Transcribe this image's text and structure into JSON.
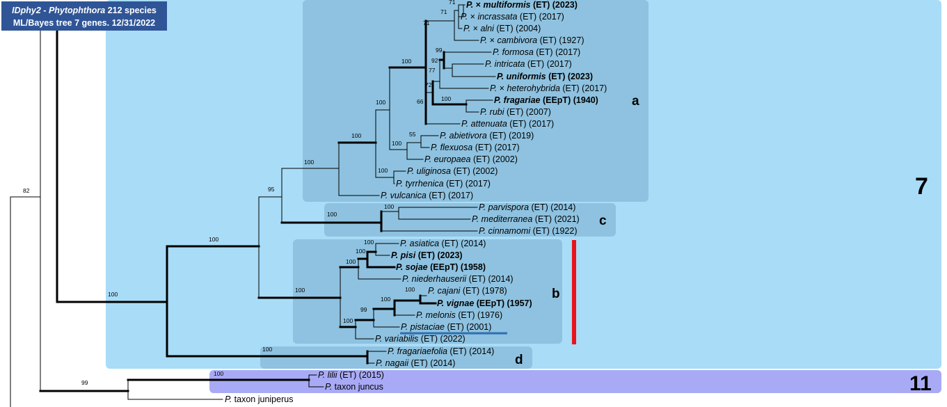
{
  "header": {
    "code": "IDphy2",
    "dash": " - ",
    "genus": "Phytophthora",
    "count": " 212 species",
    "line2": "ML/Bayes tree 7 genes. 12/31/2022"
  },
  "clades": {
    "big": "7",
    "eleven": "11",
    "a": "a",
    "b": "b",
    "c": "c",
    "d": "d"
  },
  "colors": {
    "clade7_bg": "#a9dcf7",
    "subclade_bg": "#8ec2e0",
    "clade11_bg": "#a9aaf5",
    "highlight_bar": "#e8141c",
    "underline": "#2f6fb0",
    "header_bg": "#2f5597"
  },
  "taxa": [
    {
      "id": "multiformis",
      "prefix": "P. ",
      "hybrid": true,
      "epithet": "multiformis",
      "suffix": " (ET) (2023)",
      "bold": true
    },
    {
      "id": "incrassata",
      "prefix": "P. ",
      "hybrid": true,
      "epithet": "incrassata",
      "suffix": " (ET) (2017)",
      "bold": false
    },
    {
      "id": "alni",
      "prefix": "P. ",
      "hybrid": true,
      "epithet": "alni",
      "suffix": " (ET) (2004)",
      "bold": false
    },
    {
      "id": "cambivora",
      "prefix": "P. ",
      "hybrid": true,
      "epithet": "cambivora",
      "suffix": " (ET) (1927)",
      "bold": false
    },
    {
      "id": "formosa",
      "prefix": "P. ",
      "hybrid": false,
      "epithet": "formosa",
      "suffix": " (ET) (2017)",
      "bold": false
    },
    {
      "id": "intricata",
      "prefix": "P. ",
      "hybrid": false,
      "epithet": "intricata",
      "suffix": " (ET) (2017)",
      "bold": false
    },
    {
      "id": "uniformis",
      "prefix": "P. ",
      "hybrid": false,
      "epithet": "uniformis",
      "suffix": " (ET) (2023)",
      "bold": true
    },
    {
      "id": "heterohybrida",
      "prefix": "P. ",
      "hybrid": true,
      "epithet": "heterohybrida",
      "suffix": " (ET) (2017)",
      "bold": false
    },
    {
      "id": "fragariae",
      "prefix": "P. ",
      "hybrid": false,
      "epithet": "fragariae",
      "suffix": " (EEpT) (1940)",
      "bold": true
    },
    {
      "id": "rubi",
      "prefix": "P. ",
      "hybrid": false,
      "epithet": "rubi",
      "suffix": " (ET) (2007)",
      "bold": false
    },
    {
      "id": "attenuata",
      "prefix": "P. ",
      "hybrid": false,
      "epithet": "attenuata",
      "suffix": " (ET) (2017)",
      "bold": false
    },
    {
      "id": "abietivora",
      "prefix": "P. ",
      "hybrid": false,
      "epithet": "abietivora",
      "suffix": " (ET) (2019)",
      "bold": false
    },
    {
      "id": "flexuosa",
      "prefix": "P. ",
      "hybrid": false,
      "epithet": "flexuosa",
      "suffix": " (ET) (2017)",
      "bold": false
    },
    {
      "id": "europaea",
      "prefix": "P. ",
      "hybrid": false,
      "epithet": "europaea",
      "suffix": "  (ET) (2002)",
      "bold": false
    },
    {
      "id": "uliginosa",
      "prefix": "P. ",
      "hybrid": false,
      "epithet": "uliginosa",
      "suffix": " (ET) (2002)",
      "bold": false
    },
    {
      "id": "tyrrhenica",
      "prefix": "P. ",
      "hybrid": false,
      "epithet": "tyrrhenica",
      "suffix": " (ET) (2017)",
      "bold": false
    },
    {
      "id": "vulcanica",
      "prefix": "P. ",
      "hybrid": false,
      "epithet": "vulcanica",
      "suffix": " (ET) (2017)",
      "bold": false
    },
    {
      "id": "parvispora",
      "prefix": "P. ",
      "hybrid": false,
      "epithet": "parvispora",
      "suffix": " (ET) (2014)",
      "bold": false
    },
    {
      "id": "mediterranea",
      "prefix": "P. ",
      "hybrid": false,
      "epithet": "mediterranea",
      "suffix": " (ET) (2021)",
      "bold": false
    },
    {
      "id": "cinnamomi",
      "prefix": "P. ",
      "hybrid": false,
      "epithet": "cinnamomi",
      "suffix": " (ET) (1922)",
      "bold": false
    },
    {
      "id": "asiatica",
      "prefix": "P. ",
      "hybrid": false,
      "epithet": "asiatica",
      "suffix": " (ET) (2014)",
      "bold": false
    },
    {
      "id": "pisi",
      "prefix": "P. ",
      "hybrid": false,
      "epithet": "pisi",
      "suffix": " (ET) (2023)",
      "bold": true
    },
    {
      "id": "sojae",
      "prefix": "P. ",
      "hybrid": false,
      "epithet": "sojae",
      "suffix": " (EEpT) (1958)",
      "bold": true
    },
    {
      "id": "niederhauserii",
      "prefix": "P. ",
      "hybrid": false,
      "epithet": "niederhauserii",
      "suffix": " (ET) (2014)",
      "bold": false
    },
    {
      "id": "cajani",
      "prefix": "P. ",
      "hybrid": false,
      "epithet": "cajani",
      "suffix": " (ET) (1978)",
      "bold": false
    },
    {
      "id": "vignae",
      "prefix": "P. ",
      "hybrid": false,
      "epithet": "vignae",
      "suffix": " (EEpT) (1957)",
      "bold": true
    },
    {
      "id": "melonis",
      "prefix": "P. ",
      "hybrid": false,
      "epithet": "melonis",
      "suffix": " (ET) (1976)",
      "bold": false
    },
    {
      "id": "pistaciae",
      "prefix": "P. ",
      "hybrid": false,
      "epithet": "pistaciae",
      "suffix": " (ET) (2001)",
      "bold": false
    },
    {
      "id": "variabilis",
      "prefix": "P. ",
      "hybrid": false,
      "epithet": "variabilis",
      "suffix": " (ET) (2022)",
      "bold": false
    },
    {
      "id": "fragariaefolia",
      "prefix": "P. ",
      "hybrid": false,
      "epithet": "fragariaefolia",
      "suffix": " (ET) (2014)",
      "bold": false
    },
    {
      "id": "nagaii",
      "prefix": "P. ",
      "hybrid": false,
      "epithet": "nagaii",
      "suffix": " (ET) (2014)",
      "bold": false
    },
    {
      "id": "lilii",
      "prefix": "P. ",
      "hybrid": false,
      "epithet": "lilii",
      "suffix": " (ET) (2015)",
      "bold": false
    },
    {
      "id": "juncus",
      "prefix": "P. ",
      "hybrid": false,
      "epithet": "taxon juncus",
      "suffix": "",
      "bold": false,
      "upright_epithet": true
    },
    {
      "id": "juniperus",
      "prefix": "P. ",
      "hybrid": false,
      "epithet": "taxon juniperus",
      "suffix": "",
      "bold": false,
      "upright_epithet": true
    }
  ],
  "supports": {
    "s71a": "71",
    "s71b": "71",
    "s71c": "71",
    "s99a": "99",
    "s92": "92",
    "s77": "77",
    "s72": "72",
    "s100f": "100",
    "s66": "66",
    "s100a": "100",
    "s55": "55",
    "s100ab": "100",
    "s100acl": "100",
    "s100ul": "100",
    "s100top": "100",
    "s100a_outer": "100",
    "s95": "95",
    "s100c": "100",
    "s100cin": "100",
    "s100main": "100",
    "s100asi": "100",
    "s100pisi": "100",
    "s100sojae": "100",
    "s100b": "100",
    "s100caj": "100",
    "s100vig": "100",
    "s99mel": "99",
    "s100var": "100",
    "s100d": "100",
    "s100root7": "100",
    "s82": "82",
    "s99root": "99",
    "s100lil": "100"
  }
}
